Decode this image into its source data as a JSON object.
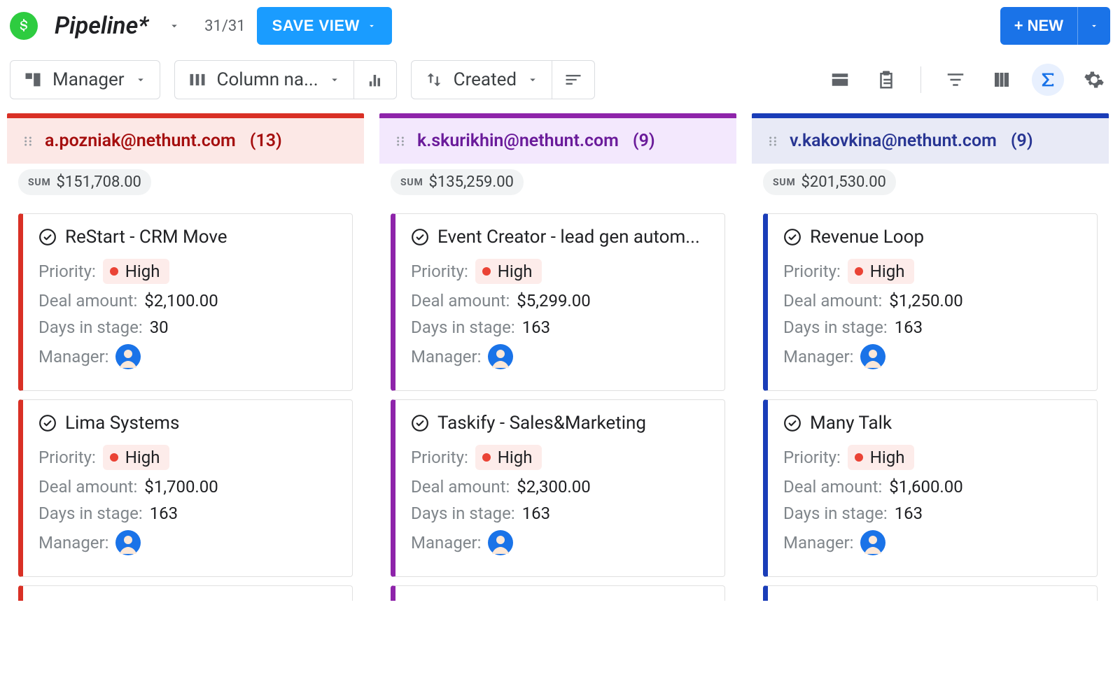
{
  "header": {
    "title": "Pipeline*",
    "count": "31/31",
    "save_view_label": "SAVE VIEW",
    "new_label": "+ NEW"
  },
  "toolbar": {
    "group_by": "Manager",
    "column_name": "Column na...",
    "sort_by": "Created"
  },
  "colors": {
    "primary_blue": "#1a9cff",
    "action_blue": "#1a73e8",
    "logo_green": "#2ecc40",
    "priority_bg": "#fdecea",
    "priority_dot": "#ea4335"
  },
  "columns": [
    {
      "title": "a.pozniak@nethunt.com",
      "count": "(13)",
      "sum": "$151,708.00",
      "accent": "#d93025",
      "header_bg": "#fce8e6",
      "title_color": "#a50e0e",
      "avatar_bg": "#1a73e8",
      "cards": [
        {
          "title": "ReStart - CRM Move",
          "priority": "High",
          "deal_amount": "$2,100.00",
          "days_in_stage": "30"
        },
        {
          "title": "Lima Systems",
          "priority": "High",
          "deal_amount": "$1,700.00",
          "days_in_stage": "163"
        }
      ]
    },
    {
      "title": "k.skurikhin@nethunt.com",
      "count": "(9)",
      "sum": "$135,259.00",
      "accent": "#8e24aa",
      "header_bg": "#f3e8fd",
      "title_color": "#6a1b9a",
      "avatar_bg": "#1a73e8",
      "cards": [
        {
          "title": "Event Creator - lead gen autom...",
          "priority": "High",
          "deal_amount": "$5,299.00",
          "days_in_stage": "163"
        },
        {
          "title": "Taskify - Sales&Marketing",
          "priority": "High",
          "deal_amount": "$2,300.00",
          "days_in_stage": "163"
        }
      ]
    },
    {
      "title": "v.kakovkina@nethunt.com",
      "count": "(9)",
      "sum": "$201,530.00",
      "accent": "#1a3db8",
      "header_bg": "#e8eaf6",
      "title_color": "#283593",
      "avatar_bg": "#1a73e8",
      "cards": [
        {
          "title": "Revenue Loop",
          "priority": "High",
          "deal_amount": "$1,250.00",
          "days_in_stage": "163"
        },
        {
          "title": "Many Talk",
          "priority": "High",
          "deal_amount": "$1,600.00",
          "days_in_stage": "163"
        }
      ]
    }
  ],
  "labels": {
    "sum": "SUM",
    "priority": "Priority:",
    "deal_amount": "Deal amount:",
    "days_in_stage": "Days in stage:",
    "manager": "Manager:"
  }
}
